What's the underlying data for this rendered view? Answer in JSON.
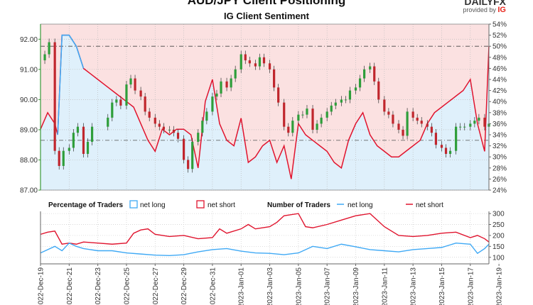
{
  "header": {
    "title": "AUD/JPY Client Positioning",
    "subtitle": "IG Client Sentiment",
    "brand_line1": "DAILYFX",
    "brand_line2": "provided by",
    "brand_ig": "IG"
  },
  "colors": {
    "long": "#3fa9f5",
    "short": "#e0142e",
    "long_fill": "#dff0fb",
    "short_fill": "#fbe1e1",
    "candle_up": "#2e9e3a",
    "candle_down": "#c0262d",
    "axis_green": "#3a9a3a"
  },
  "chart_data": [
    {
      "type": "line",
      "name": "price-and-sentiment",
      "y_left_ticks": [
        "92.00",
        "91.00",
        "90.00",
        "89.00",
        "88.00",
        "87.00"
      ],
      "y_left_range": [
        87.0,
        92.5
      ],
      "y_right_ticks": [
        "54%",
        "52%",
        "50%",
        "48%",
        "46%",
        "44%",
        "42%",
        "40%",
        "38%",
        "36%",
        "34%",
        "32%",
        "30%",
        "28%",
        "26%",
        "24%"
      ],
      "y_right_range": [
        24,
        54
      ],
      "reference_lines": {
        "pct_50": 50,
        "price": 88.65
      },
      "price_path_days": [
        0,
        0.3,
        0.6,
        1,
        1.3,
        1.6,
        2,
        2.3,
        2.6,
        3,
        3.3,
        3.6,
        4.7,
        5,
        5.3,
        5.6,
        6,
        6.3,
        6.6,
        7,
        7.3,
        7.6,
        8,
        8.3,
        8.6,
        9,
        9.3,
        9.6,
        10,
        10.3,
        10.6,
        11,
        11.3,
        11.6,
        12,
        12.3,
        12.6,
        13,
        13.3,
        13.6,
        14,
        14.3,
        14.6,
        15,
        15.3,
        15.6,
        16,
        16.3,
        16.6,
        17,
        17.3,
        17.6,
        18,
        18.3,
        18.6,
        19,
        19.3,
        19.6,
        20,
        20.3,
        20.6,
        21,
        21.3,
        21.6,
        22,
        22.3,
        22.6,
        23,
        23.3,
        23.6,
        24,
        24.3,
        24.6,
        25,
        25.3,
        25.6,
        26,
        26.3,
        26.6,
        27,
        27.3,
        27.6,
        28,
        28.3,
        28.6,
        29,
        29.3,
        29.6,
        30,
        30.3,
        30.6,
        31,
        31.3
      ],
      "price_path": [
        91.3,
        91.5,
        91.9,
        88.3,
        87.8,
        88.3,
        88.4,
        88.9,
        89.1,
        88.2,
        88.6,
        89.1,
        89.4,
        89.9,
        90.0,
        89.8,
        90.5,
        90.7,
        90.3,
        90.1,
        89.6,
        89.4,
        89.2,
        89.1,
        89.0,
        89.0,
        88.9,
        88.7,
        88.0,
        87.7,
        88.6,
        88.9,
        89.3,
        89.6,
        90.1,
        90.2,
        90.6,
        90.4,
        90.7,
        91.0,
        91.5,
        91.3,
        91.2,
        91.1,
        91.4,
        91.2,
        91.0,
        90.4,
        89.9,
        89.1,
        88.9,
        89.3,
        89.5,
        89.5,
        89.7,
        89.0,
        89.2,
        89.4,
        89.6,
        89.8,
        89.9,
        90.0,
        90.0,
        90.3,
        90.4,
        90.7,
        91.0,
        91.1,
        90.6,
        90.0,
        89.6,
        89.5,
        89.2,
        89.0,
        88.8,
        89.6,
        89.4,
        89.3,
        89.2,
        89.1,
        88.9,
        88.5,
        88.4,
        88.2,
        88.3,
        89.1,
        89.1,
        89.1,
        89.2,
        89.3,
        89.4,
        89.1,
        89.2
      ],
      "net_long_pct_days": [
        0,
        0.5,
        1,
        1.2,
        1.5,
        2,
        2.5,
        3,
        3.5,
        4,
        4.5,
        5,
        5.5,
        6,
        6.5,
        7,
        7.5,
        8,
        8.5,
        9,
        9.5,
        10,
        10.5,
        11,
        11.5,
        12,
        12.5,
        13,
        13.5,
        14,
        14.5,
        15,
        15.5,
        16,
        16.5,
        17,
        17.5,
        18,
        18.5,
        19,
        19.5,
        20,
        20.5,
        21,
        21.5,
        22,
        22.5,
        23,
        23.5,
        24,
        24.5,
        25,
        25.5,
        26,
        26.5,
        27,
        27.5,
        28,
        28.5,
        29,
        29.5,
        30,
        30.5,
        31,
        31.3
      ],
      "net_long_pct": [
        35,
        38,
        36,
        34,
        52,
        52,
        50,
        46,
        45,
        44,
        43,
        42,
        41,
        40,
        39,
        36,
        33,
        31,
        35,
        34,
        35,
        35,
        34,
        28,
        40,
        44,
        36,
        33,
        32,
        37,
        29,
        30,
        32,
        33,
        29,
        32,
        26,
        36,
        34,
        33,
        32,
        31,
        29,
        28,
        33,
        36,
        38,
        34,
        32,
        31,
        30,
        30,
        31,
        32,
        33,
        36,
        38,
        39,
        40,
        41,
        42,
        44,
        36,
        31,
        50
      ]
    },
    {
      "type": "line",
      "name": "number-of-traders",
      "y_right_ticks": [
        "300",
        "250",
        "200",
        "150",
        "100"
      ],
      "y_range": [
        70,
        310
      ],
      "net_long_days": [
        0,
        1,
        1.5,
        2,
        2.5,
        3,
        4,
        5,
        6,
        7,
        8,
        9,
        10,
        11,
        12,
        13,
        14,
        15,
        16,
        17,
        18,
        19,
        20,
        21,
        22,
        23,
        24,
        25,
        26,
        27,
        28,
        29,
        30,
        30.5,
        31,
        31.3
      ],
      "net_long": [
        120,
        150,
        130,
        165,
        150,
        140,
        130,
        130,
        120,
        115,
        110,
        108,
        112,
        125,
        135,
        140,
        128,
        120,
        118,
        112,
        120,
        150,
        140,
        160,
        148,
        135,
        130,
        125,
        135,
        140,
        145,
        165,
        160,
        118,
        140,
        160
      ],
      "net_short_days": [
        0,
        0.5,
        1,
        1.5,
        2,
        2.5,
        3,
        4,
        5,
        6,
        6.5,
        7,
        7.5,
        8,
        9,
        10,
        11,
        12,
        12.5,
        13,
        14,
        14.5,
        15,
        16,
        16.5,
        17,
        18,
        18.5,
        19,
        20,
        21,
        22,
        23,
        24,
        25,
        26,
        27,
        28,
        29,
        30,
        30.5,
        31,
        31.3
      ],
      "net_short": [
        205,
        215,
        220,
        160,
        165,
        160,
        170,
        165,
        160,
        165,
        210,
        225,
        230,
        205,
        195,
        200,
        185,
        190,
        230,
        210,
        230,
        250,
        230,
        240,
        260,
        290,
        300,
        240,
        235,
        250,
        270,
        290,
        300,
        240,
        200,
        195,
        200,
        210,
        215,
        190,
        200,
        185,
        170
      ],
      "legend": {
        "pct_label": "Percentage of Traders",
        "pct_long": "net long",
        "pct_short": "net short",
        "num_label": "Number of Traders",
        "num_long": "net long",
        "num_short": "net short"
      }
    }
  ],
  "x_axis": {
    "labels": [
      "2022-Dec-19",
      "2022-Dec-21",
      "2022-Dec-23",
      "2022-Dec-25",
      "2022-Dec-27",
      "2022-Dec-29",
      "2022-Dec-31",
      "2023-Jan-01",
      "2023-Jan-03",
      "2023-Jan-05",
      "2023-Jan-07",
      "2023-Jan-09",
      "2023-Jan-11",
      "2023-Jan-13",
      "2023-Jan-15",
      "2023-Jan-17",
      "2023-Jan-19"
    ]
  }
}
